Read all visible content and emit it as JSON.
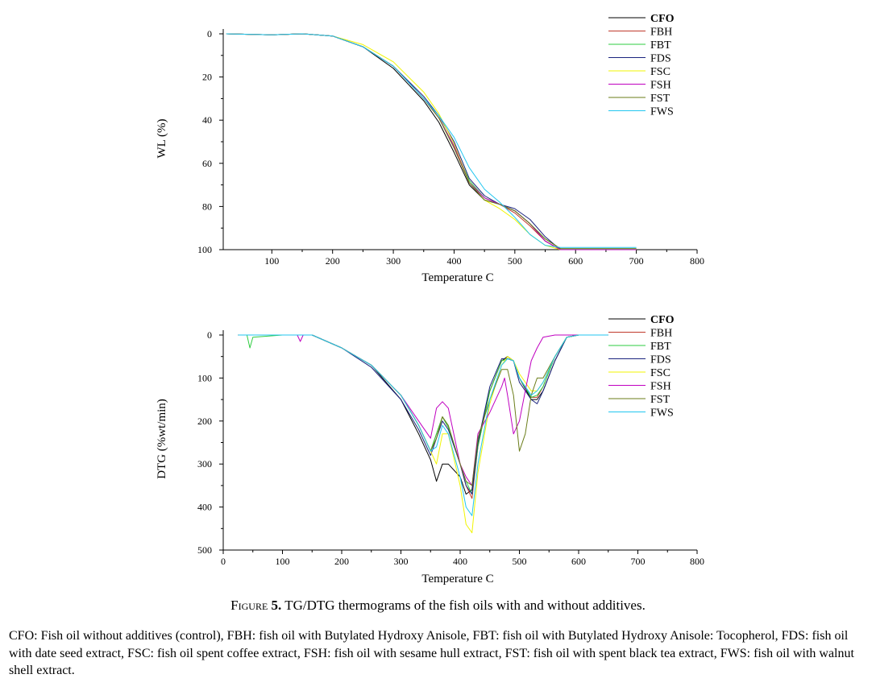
{
  "caption": {
    "label": "Figure",
    "number": "5.",
    "text": " TG/DTG thermograms of the fish oils with and without additives."
  },
  "footnote": "CFO: Fish oil without additives (control), FBH: fish oil with Butylated Hydroxy Anisole, FBT: fish oil with Butylated Hydroxy Anisole: Tocopherol, FDS: fish oil with date seed extract, FSC: fish oil spent coffee extract, FSH: fish oil with sesame hull extract, FST: fish oil with spent black tea extract, FWS: fish oil with walnut shell extract.",
  "series_style": [
    {
      "name": "CFO",
      "color": "#000000"
    },
    {
      "name": "FBH",
      "color": "#c0392b"
    },
    {
      "name": "FBT",
      "color": "#2ecc40"
    },
    {
      "name": "FDS",
      "color": "#1a237e"
    },
    {
      "name": "FSC",
      "color": "#f1f500"
    },
    {
      "name": "FSH",
      "color": "#c000c0"
    },
    {
      "name": "FST",
      "color": "#6b7d1a"
    },
    {
      "name": "FWS",
      "color": "#22c6f0"
    }
  ],
  "chart_data": [
    {
      "type": "line",
      "title": "",
      "xlabel": "Temperature C",
      "ylabel": "WL (%)",
      "xlim": [
        20,
        800
      ],
      "ylim": [
        0,
        100
      ],
      "y_inverted": true,
      "xticks": [
        100,
        200,
        300,
        400,
        500,
        600,
        700,
        800
      ],
      "yticks": [
        0,
        20,
        40,
        60,
        80,
        100
      ],
      "legend_position": "top-right",
      "series": [
        {
          "name": "CFO",
          "x": [
            25,
            100,
            150,
            200,
            250,
            300,
            350,
            375,
            400,
            425,
            450,
            475,
            500,
            525,
            550,
            575,
            600,
            650,
            700
          ],
          "y": [
            0,
            0.5,
            0,
            1,
            6,
            16,
            31,
            41,
            55,
            70,
            77,
            79,
            82,
            88,
            96,
            100,
            100,
            100,
            100
          ]
        },
        {
          "name": "FBH",
          "x": [
            25,
            100,
            150,
            200,
            250,
            300,
            350,
            375,
            400,
            425,
            450,
            475,
            500,
            525,
            550,
            575,
            600,
            650,
            700
          ],
          "y": [
            0,
            0.5,
            0,
            1,
            6,
            15,
            30,
            39,
            52,
            69,
            76,
            79,
            83,
            89,
            96,
            100,
            100,
            100,
            100
          ]
        },
        {
          "name": "FBT",
          "x": [
            25,
            100,
            150,
            200,
            250,
            300,
            350,
            375,
            400,
            425,
            450,
            475,
            500,
            525,
            550,
            575,
            600,
            650,
            700
          ],
          "y": [
            0,
            0.5,
            0,
            1,
            6,
            15,
            30,
            39,
            52,
            68,
            76,
            79,
            82,
            88,
            95,
            99.5,
            99.5,
            99.5,
            99.5
          ]
        },
        {
          "name": "FDS",
          "x": [
            25,
            100,
            150,
            200,
            250,
            300,
            350,
            375,
            400,
            425,
            450,
            475,
            500,
            525,
            550,
            575,
            600,
            650,
            700
          ],
          "y": [
            0,
            0.5,
            0,
            1,
            6,
            15,
            29,
            38,
            50,
            67,
            75,
            79,
            81,
            86,
            94,
            100,
            100,
            100,
            100
          ]
        },
        {
          "name": "FSC",
          "x": [
            25,
            100,
            150,
            200,
            250,
            300,
            350,
            375,
            400,
            425,
            450,
            475,
            500,
            525,
            550,
            575,
            600,
            650,
            700
          ],
          "y": [
            0,
            0.5,
            0,
            1,
            5,
            13,
            27,
            37,
            51,
            69,
            77,
            81,
            86,
            93,
            98,
            100,
            100,
            100,
            100
          ]
        },
        {
          "name": "FSH",
          "x": [
            25,
            100,
            150,
            200,
            250,
            300,
            350,
            375,
            400,
            425,
            450,
            475,
            500,
            525,
            550,
            575,
            600,
            650,
            700
          ],
          "y": [
            0,
            0.5,
            0,
            1,
            6,
            15,
            30,
            39,
            52,
            69,
            76,
            79,
            82,
            88,
            96,
            100,
            100,
            100,
            100
          ]
        },
        {
          "name": "FST",
          "x": [
            25,
            100,
            150,
            200,
            250,
            300,
            350,
            375,
            400,
            425,
            450,
            475,
            500,
            525,
            550,
            575,
            600,
            650,
            700
          ],
          "y": [
            0,
            0.5,
            0,
            1,
            6,
            15,
            30,
            39,
            53,
            69,
            77,
            79,
            82,
            88,
            95,
            99.5,
            99.5,
            99.5,
            99.5
          ]
        },
        {
          "name": "FWS",
          "x": [
            25,
            100,
            150,
            200,
            250,
            300,
            350,
            375,
            400,
            425,
            450,
            475,
            500,
            525,
            550,
            575,
            600,
            650,
            700
          ],
          "y": [
            0,
            0.5,
            0,
            1,
            6,
            15,
            30,
            38,
            48,
            62,
            72,
            78,
            85,
            93,
            98,
            99,
            99,
            99,
            99
          ]
        }
      ]
    },
    {
      "type": "line",
      "title": "",
      "xlabel": "Temperature C",
      "ylabel": "DTG (%wt/min)",
      "xlim": [
        0,
        800
      ],
      "ylim": [
        0,
        500
      ],
      "y_inverted": true,
      "xticks": [
        0,
        100,
        200,
        300,
        400,
        500,
        600,
        700,
        800
      ],
      "yticks": [
        0,
        100,
        200,
        300,
        400,
        500
      ],
      "legend_position": "top-right",
      "series": [
        {
          "name": "CFO",
          "x": [
            25,
            100,
            150,
            200,
            250,
            300,
            330,
            350,
            360,
            370,
            380,
            400,
            410,
            420,
            430,
            450,
            470,
            480,
            490,
            500,
            520,
            530,
            540,
            560,
            580,
            600,
            650
          ],
          "y": [
            0,
            0,
            0,
            30,
            70,
            150,
            230,
            290,
            340,
            300,
            300,
            330,
            370,
            360,
            250,
            130,
            60,
            50,
            60,
            100,
            150,
            150,
            130,
            60,
            5,
            0,
            0
          ]
        },
        {
          "name": "FBH",
          "x": [
            25,
            100,
            150,
            200,
            250,
            300,
            330,
            350,
            360,
            370,
            380,
            400,
            410,
            420,
            430,
            450,
            470,
            480,
            490,
            500,
            520,
            530,
            540,
            560,
            580,
            600,
            650
          ],
          "y": [
            0,
            0,
            0,
            30,
            70,
            140,
            210,
            270,
            230,
            190,
            215,
            300,
            350,
            380,
            260,
            130,
            60,
            55,
            60,
            100,
            145,
            145,
            120,
            50,
            5,
            0,
            0
          ]
        },
        {
          "name": "FBT",
          "x": [
            25,
            40,
            45,
            50,
            100,
            150,
            200,
            250,
            300,
            330,
            350,
            360,
            370,
            380,
            400,
            410,
            420,
            430,
            450,
            470,
            480,
            490,
            500,
            520,
            530,
            540,
            560,
            580,
            600,
            650
          ],
          "y": [
            0,
            0,
            30,
            5,
            0,
            0,
            30,
            70,
            140,
            210,
            270,
            230,
            190,
            215,
            300,
            340,
            370,
            260,
            130,
            60,
            55,
            60,
            100,
            145,
            140,
            120,
            50,
            5,
            0,
            0
          ]
        },
        {
          "name": "FDS",
          "x": [
            25,
            100,
            150,
            200,
            250,
            300,
            330,
            350,
            360,
            370,
            380,
            400,
            410,
            420,
            430,
            450,
            470,
            480,
            490,
            500,
            520,
            530,
            540,
            560,
            580,
            600,
            650
          ],
          "y": [
            0,
            0,
            0,
            30,
            75,
            150,
            220,
            280,
            240,
            200,
            220,
            300,
            350,
            370,
            250,
            120,
            55,
            55,
            60,
            110,
            150,
            160,
            130,
            60,
            5,
            0,
            0
          ]
        },
        {
          "name": "FSC",
          "x": [
            25,
            100,
            150,
            200,
            250,
            300,
            330,
            350,
            360,
            370,
            380,
            400,
            410,
            420,
            430,
            450,
            470,
            480,
            490,
            500,
            520,
            530,
            540,
            560,
            580,
            600,
            650
          ],
          "y": [
            0,
            0,
            0,
            30,
            70,
            140,
            210,
            270,
            300,
            230,
            230,
            350,
            440,
            460,
            320,
            160,
            70,
            50,
            60,
            90,
            130,
            130,
            110,
            50,
            5,
            0,
            0
          ]
        },
        {
          "name": "FSH",
          "x": [
            25,
            100,
            125,
            130,
            135,
            150,
            200,
            250,
            300,
            330,
            350,
            360,
            370,
            380,
            400,
            410,
            420,
            430,
            450,
            470,
            475,
            480,
            490,
            500,
            510,
            520,
            530,
            540,
            560,
            580,
            600,
            650
          ],
          "y": [
            0,
            0,
            0,
            15,
            0,
            0,
            30,
            70,
            140,
            200,
            240,
            170,
            155,
            170,
            300,
            330,
            350,
            230,
            180,
            120,
            100,
            140,
            230,
            200,
            130,
            60,
            30,
            5,
            0,
            0,
            0,
            0
          ]
        },
        {
          "name": "FST",
          "x": [
            25,
            100,
            150,
            200,
            250,
            300,
            330,
            350,
            360,
            370,
            380,
            400,
            410,
            420,
            430,
            450,
            470,
            480,
            490,
            500,
            510,
            520,
            530,
            540,
            560,
            580,
            600,
            650
          ],
          "y": [
            0,
            0,
            0,
            30,
            70,
            140,
            210,
            270,
            240,
            190,
            210,
            300,
            340,
            350,
            240,
            150,
            80,
            80,
            140,
            270,
            230,
            140,
            100,
            100,
            50,
            5,
            0,
            0
          ]
        },
        {
          "name": "FWS",
          "x": [
            25,
            100,
            150,
            200,
            250,
            300,
            330,
            350,
            360,
            370,
            380,
            400,
            410,
            420,
            430,
            450,
            470,
            480,
            490,
            500,
            520,
            530,
            540,
            560,
            580,
            600,
            650
          ],
          "y": [
            0,
            0,
            0,
            30,
            70,
            140,
            210,
            270,
            260,
            210,
            230,
            330,
            400,
            420,
            300,
            150,
            70,
            55,
            60,
            100,
            140,
            130,
            110,
            50,
            5,
            0,
            0
          ]
        }
      ]
    }
  ]
}
